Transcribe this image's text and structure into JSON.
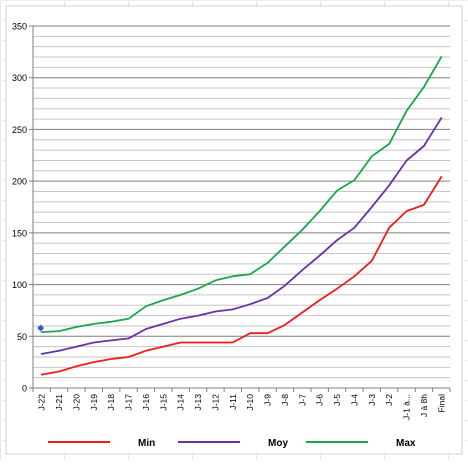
{
  "chart_data": {
    "type": "line",
    "title": "",
    "xlabel": "",
    "ylabel": "",
    "ylim": [
      0,
      350
    ],
    "yticks": [
      0,
      50,
      100,
      150,
      200,
      250,
      300,
      350
    ],
    "grid": true,
    "legend_position": "bottom",
    "categories": [
      "J-22",
      "J-21",
      "J-20",
      "J-19",
      "J-18",
      "J-17",
      "J-16",
      "J-15",
      "J-14",
      "J-13",
      "J-12",
      "J-11",
      "J-10",
      "J-9",
      "J-8",
      "J-7",
      "J-6",
      "J-5",
      "J-4",
      "J-3",
      "J-2",
      "J-1 à...",
      "J à 8h",
      "Final"
    ],
    "series": [
      {
        "name": "Min",
        "color": "#ee1c1c",
        "values": [
          13,
          16,
          21,
          25,
          28,
          30,
          36,
          40,
          44,
          44,
          44,
          44,
          53,
          53,
          61,
          73,
          85,
          96,
          108,
          123,
          155,
          171,
          177,
          204
        ]
      },
      {
        "name": "Moy",
        "color": "#6a32a8",
        "values": [
          33,
          36,
          40,
          44,
          46,
          48,
          57,
          62,
          67,
          70,
          74,
          76,
          81,
          87,
          99,
          114,
          128,
          143,
          155,
          175,
          196,
          220,
          234,
          261
        ]
      },
      {
        "name": "Max",
        "color": "#18a849",
        "values": [
          54,
          55,
          59,
          62,
          64,
          67,
          79,
          85,
          90,
          96,
          104,
          108,
          110,
          121,
          137,
          153,
          171,
          191,
          201,
          224,
          236,
          268,
          291,
          320
        ]
      }
    ],
    "annotations": [
      {
        "type": "marker",
        "shape": "diamond",
        "color": "#3a5bbf",
        "x": "J-22",
        "y": 58
      }
    ]
  }
}
